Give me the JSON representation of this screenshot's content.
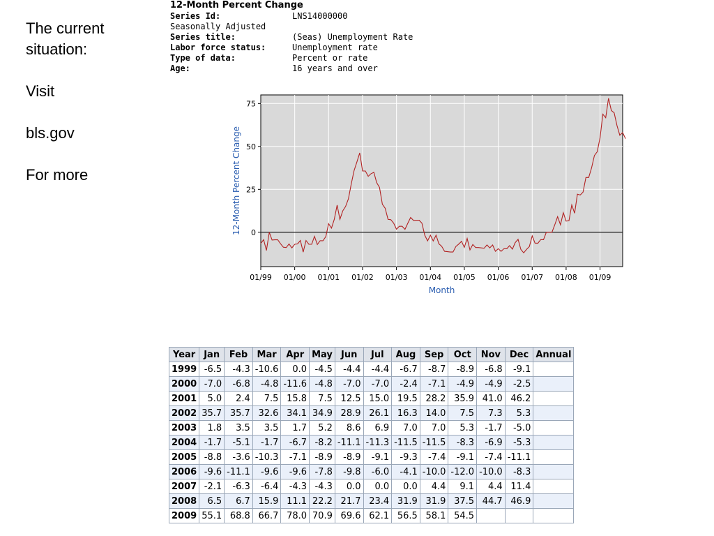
{
  "sidebar": {
    "lines": [
      "The current situation:",
      "Visit",
      "bls.gov",
      "For more"
    ]
  },
  "meta": {
    "heading": "12-Month Percent Change",
    "series_id_label": "Series Id:",
    "series_id": "LNS14000000",
    "adjustment": "Seasonally Adjusted",
    "series_title_label": "Series title:",
    "series_title": "(Seas) Unemployment Rate",
    "labor_force_label": "Labor force status:",
    "labor_force": "Unemployment rate",
    "type_label": "Type of data:",
    "type": "Percent or rate",
    "age_label": "Age:",
    "age": "16 years and over"
  },
  "chart_data": {
    "type": "line",
    "title": "",
    "xlabel": "Month",
    "ylabel": "12-Month Percent Change",
    "ylim": [
      -20,
      80
    ],
    "yticks": [
      "75",
      "50",
      "25",
      "0"
    ],
    "xticks": [
      "01/99",
      "01/00",
      "01/01",
      "01/02",
      "01/03",
      "01/04",
      "01/05",
      "01/06",
      "01/07",
      "01/08",
      "01/09"
    ],
    "grid": true,
    "line_color": "#b22222",
    "series": [
      {
        "values": [
          -6.5,
          -4.3,
          -10.6,
          0.0,
          -4.5,
          -4.4,
          -4.4,
          -6.7,
          -8.7,
          -8.9,
          -6.8,
          -9.1,
          -7.0,
          -6.8,
          -4.8,
          -11.6,
          -4.8,
          -7.0,
          -7.0,
          -2.4,
          -7.1,
          -4.9,
          -4.9,
          -2.5,
          5.0,
          2.4,
          7.5,
          15.8,
          7.5,
          12.5,
          15.0,
          19.5,
          28.2,
          35.9,
          41.0,
          46.2,
          35.7,
          35.7,
          32.6,
          34.1,
          34.9,
          28.9,
          26.1,
          16.3,
          14.0,
          7.5,
          7.3,
          5.3,
          1.8,
          3.5,
          3.5,
          1.7,
          5.2,
          8.6,
          6.9,
          7.0,
          7.0,
          5.3,
          -1.7,
          -5.0,
          -1.7,
          -5.1,
          -1.7,
          -6.7,
          -8.2,
          -11.1,
          -11.3,
          -11.5,
          -11.5,
          -8.3,
          -6.9,
          -5.3,
          -8.8,
          -3.6,
          -10.3,
          -7.1,
          -8.9,
          -8.9,
          -9.1,
          -9.3,
          -7.4,
          -9.1,
          -7.4,
          -11.1,
          -9.6,
          -11.1,
          -9.6,
          -9.6,
          -7.8,
          -9.8,
          -6.0,
          -4.1,
          -10.0,
          -12.0,
          -10.0,
          -8.3,
          -2.1,
          -6.3,
          -6.4,
          -4.3,
          -4.3,
          0.0,
          0.0,
          0.0,
          4.4,
          9.1,
          4.4,
          11.4,
          6.5,
          6.7,
          15.9,
          11.1,
          22.2,
          21.7,
          23.4,
          31.9,
          31.9,
          37.5,
          44.7,
          46.9,
          55.1,
          68.8,
          66.7,
          78.0,
          70.9,
          69.6,
          62.1,
          56.5,
          58.1,
          54.5
        ]
      }
    ]
  },
  "table": {
    "headers": [
      "Year",
      "Jan",
      "Feb",
      "Mar",
      "Apr",
      "May",
      "Jun",
      "Jul",
      "Aug",
      "Sep",
      "Oct",
      "Nov",
      "Dec",
      "Annual"
    ],
    "rows": [
      [
        "1999",
        "-6.5",
        "-4.3",
        "-10.6",
        "0.0",
        "-4.5",
        "-4.4",
        "-4.4",
        "-6.7",
        "-8.7",
        "-8.9",
        "-6.8",
        "-9.1",
        ""
      ],
      [
        "2000",
        "-7.0",
        "-6.8",
        "-4.8",
        "-11.6",
        "-4.8",
        "-7.0",
        "-7.0",
        "-2.4",
        "-7.1",
        "-4.9",
        "-4.9",
        "-2.5",
        ""
      ],
      [
        "2001",
        "5.0",
        "2.4",
        "7.5",
        "15.8",
        "7.5",
        "12.5",
        "15.0",
        "19.5",
        "28.2",
        "35.9",
        "41.0",
        "46.2",
        ""
      ],
      [
        "2002",
        "35.7",
        "35.7",
        "32.6",
        "34.1",
        "34.9",
        "28.9",
        "26.1",
        "16.3",
        "14.0",
        "7.5",
        "7.3",
        "5.3",
        ""
      ],
      [
        "2003",
        "1.8",
        "3.5",
        "3.5",
        "1.7",
        "5.2",
        "8.6",
        "6.9",
        "7.0",
        "7.0",
        "5.3",
        "-1.7",
        "-5.0",
        ""
      ],
      [
        "2004",
        "-1.7",
        "-5.1",
        "-1.7",
        "-6.7",
        "-8.2",
        "-11.1",
        "-11.3",
        "-11.5",
        "-11.5",
        "-8.3",
        "-6.9",
        "-5.3",
        ""
      ],
      [
        "2005",
        "-8.8",
        "-3.6",
        "-10.3",
        "-7.1",
        "-8.9",
        "-8.9",
        "-9.1",
        "-9.3",
        "-7.4",
        "-9.1",
        "-7.4",
        "-11.1",
        ""
      ],
      [
        "2006",
        "-9.6",
        "-11.1",
        "-9.6",
        "-9.6",
        "-7.8",
        "-9.8",
        "-6.0",
        "-4.1",
        "-10.0",
        "-12.0",
        "-10.0",
        "-8.3",
        ""
      ],
      [
        "2007",
        "-2.1",
        "-6.3",
        "-6.4",
        "-4.3",
        "-4.3",
        "0.0",
        "0.0",
        "0.0",
        "4.4",
        "9.1",
        "4.4",
        "11.4",
        ""
      ],
      [
        "2008",
        "6.5",
        "6.7",
        "15.9",
        "11.1",
        "22.2",
        "21.7",
        "23.4",
        "31.9",
        "31.9",
        "37.5",
        "44.7",
        "46.9",
        ""
      ],
      [
        "2009",
        "55.1",
        "68.8",
        "66.7",
        "78.0",
        "70.9",
        "69.6",
        "62.1",
        "56.5",
        "58.1",
        "54.5",
        "",
        "",
        ""
      ]
    ]
  }
}
